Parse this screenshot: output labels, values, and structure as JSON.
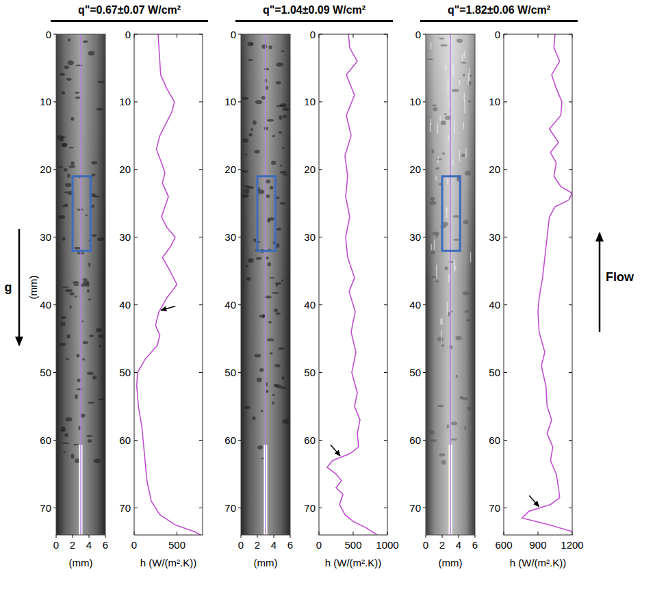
{
  "chart_data": [
    {
      "type": "line",
      "title": "q\"=0.67±0.07 W/cm²",
      "x": [
        0,
        2,
        4,
        6,
        8,
        10,
        11.5,
        13,
        15,
        17,
        19,
        20.5,
        22,
        24,
        25.5,
        27,
        28.5,
        30,
        31.5,
        33,
        35,
        37,
        39,
        41,
        43,
        44.5,
        46,
        47,
        48,
        50,
        52,
        55,
        58,
        62,
        66,
        69,
        71,
        72.5,
        73.5,
        74
      ],
      "values": [
        280,
        290,
        300,
        310,
        380,
        470,
        440,
        380,
        300,
        260,
        320,
        360,
        330,
        400,
        360,
        320,
        380,
        480,
        420,
        330,
        420,
        500,
        380,
        290,
        250,
        300,
        270,
        200,
        130,
        40,
        30,
        50,
        90,
        120,
        150,
        200,
        300,
        480,
        700,
        780
      ],
      "color": "#c04fd0",
      "xlim": [
        0,
        74
      ],
      "xticks": [
        0,
        10,
        20,
        30,
        40,
        50,
        60,
        70
      ],
      "ylim": [
        0,
        800
      ],
      "yticks": [
        0,
        500
      ],
      "ylabel": "h (W/(m².K))",
      "arrow_at": {
        "x": 41,
        "value": 290
      },
      "image": {
        "xlim": [
          0,
          6
        ],
        "xticks": [
          0,
          2,
          4,
          6
        ],
        "ylim": [
          0,
          74
        ],
        "yticks": [
          0,
          10,
          20,
          30,
          40,
          50,
          60,
          70
        ],
        "xlabel": "(mm)",
        "line_x": 3,
        "box_x": [
          2,
          4.2
        ],
        "box_y": [
          21,
          32
        ]
      }
    },
    {
      "type": "line",
      "title": "q\"=1.04±0.09 W/cm²",
      "x": [
        0,
        2,
        4,
        6,
        9,
        12,
        15,
        18,
        21,
        24,
        27,
        30,
        33,
        36,
        38,
        41,
        44,
        47,
        50,
        53,
        55,
        57,
        59,
        61,
        62,
        63,
        64,
        65,
        66,
        67,
        68,
        69.5,
        71,
        72,
        73,
        74
      ],
      "values": [
        430,
        450,
        560,
        400,
        520,
        400,
        470,
        380,
        420,
        390,
        450,
        390,
        420,
        520,
        440,
        530,
        470,
        540,
        480,
        560,
        520,
        600,
        560,
        580,
        450,
        200,
        120,
        250,
        330,
        250,
        350,
        300,
        380,
        500,
        700,
        850
      ],
      "color": "#c04fd0",
      "xlim": [
        0,
        74
      ],
      "xticks": [
        0,
        10,
        20,
        30,
        40,
        50,
        60,
        70
      ],
      "ylim": [
        0,
        1000
      ],
      "yticks": [
        0,
        500,
        1000
      ],
      "ylabel": "h (W/(m².K))",
      "arrow_at": {
        "x": 62.5,
        "value": 330
      },
      "image": {
        "xlim": [
          0,
          6
        ],
        "xticks": [
          0,
          2,
          4,
          6
        ],
        "ylim": [
          0,
          74
        ],
        "yticks": [
          0,
          10,
          20,
          30,
          40,
          50,
          60,
          70
        ],
        "xlabel": "(mm)",
        "line_x": 3,
        "box_x": [
          2,
          4.2
        ],
        "box_y": [
          21,
          32
        ]
      }
    },
    {
      "type": "line",
      "title": "q\"=1.82±0.06 W/cm²",
      "x": [
        0,
        2,
        4,
        6,
        8,
        10,
        12,
        14,
        16,
        17.5,
        19,
        21,
        22.5,
        23.5,
        24.5,
        25.5,
        27,
        30,
        33,
        36,
        39,
        41,
        44,
        47,
        49,
        52,
        55,
        57,
        59,
        61,
        63,
        65,
        67,
        68.5,
        69.5,
        70.5,
        71.5,
        72.5,
        73.5
      ],
      "values": [
        1050,
        1040,
        1090,
        1020,
        1060,
        1110,
        1100,
        1000,
        1080,
        1010,
        1060,
        1040,
        1100,
        1200,
        1170,
        1050,
        1000,
        980,
        960,
        940,
        910,
        900,
        910,
        960,
        930,
        970,
        980,
        1020,
        980,
        1030,
        1010,
        1060,
        1080,
        1090,
        1010,
        820,
        760,
        1000,
        1200
      ],
      "color": "#c04fd0",
      "xlim": [
        0,
        74
      ],
      "xticks": [
        0,
        10,
        20,
        30,
        40,
        50,
        60,
        70
      ],
      "ylim": [
        600,
        1200
      ],
      "yticks": [
        600,
        900,
        1200
      ],
      "ylabel": "h (W/(m².K))",
      "arrow_at": {
        "x": 70,
        "value": 920
      },
      "image": {
        "xlim": [
          0,
          6
        ],
        "xticks": [
          0,
          2,
          4,
          6
        ],
        "ylim": [
          0,
          74
        ],
        "yticks": [
          0,
          10,
          20,
          30,
          40,
          50,
          60,
          70
        ],
        "xlabel": "(mm)",
        "line_x": 3,
        "box_x": [
          2,
          4.2
        ],
        "box_y": [
          21,
          32
        ]
      }
    }
  ],
  "gravity_label": "g",
  "position_label": "(mm)",
  "flow_label": "Flow"
}
